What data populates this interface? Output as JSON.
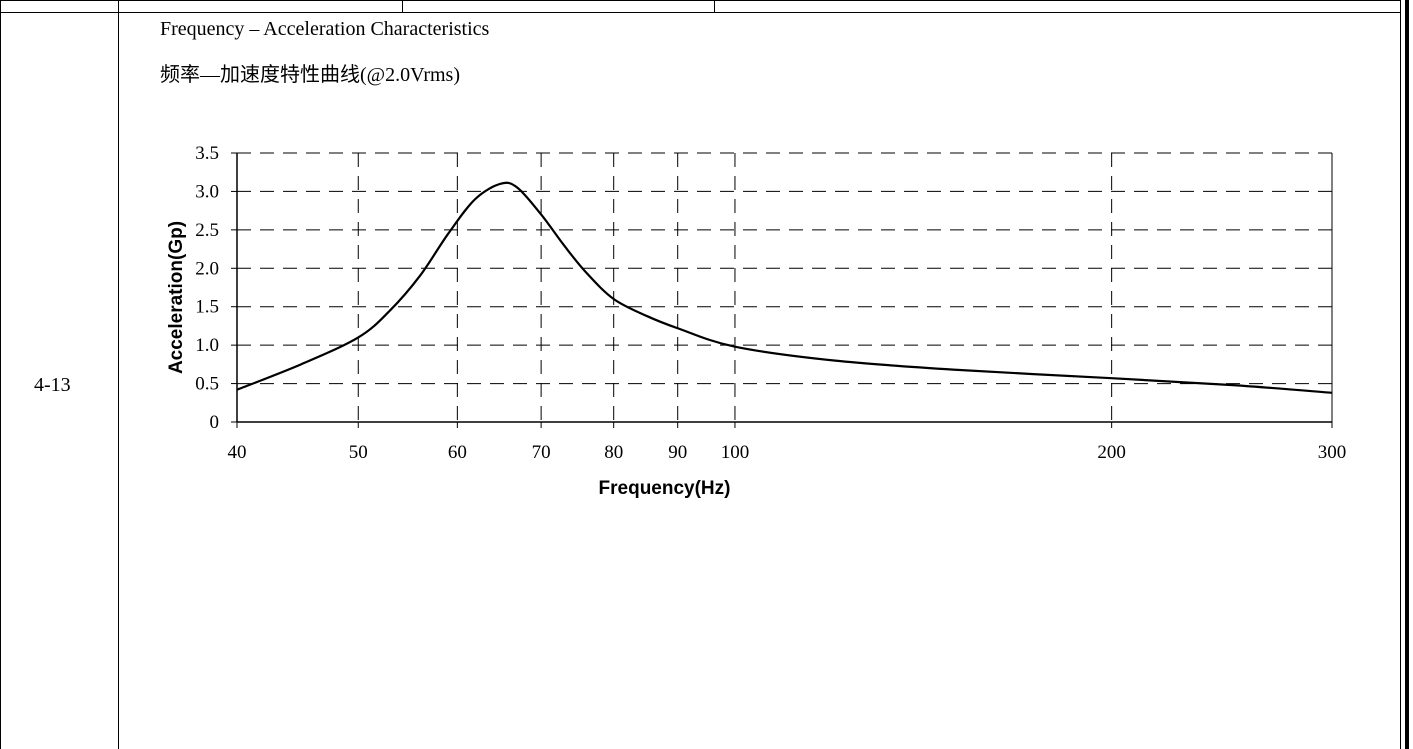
{
  "table": {
    "row_label": "4-13"
  },
  "header": {
    "title_en": "Frequency – Acceleration Characteristics",
    "title_cn": "频率—加速度特性曲线(@2.0Vrms)"
  },
  "chart_data": {
    "type": "line",
    "xlabel": "Frequency(Hz)",
    "ylabel": "Acceleration(Gp)",
    "x_scale": "log",
    "xlim": [
      40,
      300
    ],
    "ylim": [
      0,
      3.5
    ],
    "x_ticks": [
      40,
      50,
      60,
      70,
      80,
      90,
      100,
      200,
      300
    ],
    "x_tick_labels": [
      "40",
      "50",
      "60",
      "70",
      "80",
      "90",
      "100",
      "200",
      "300"
    ],
    "y_ticks": [
      0,
      0.5,
      1.0,
      1.5,
      2.0,
      2.5,
      3.0,
      3.5
    ],
    "y_tick_labels": [
      "0",
      "0.5",
      "1.0",
      "1.5",
      "2.0",
      "2.5",
      "3.0",
      "3.5"
    ],
    "grid": true,
    "grid_style": "dashed",
    "line_color": "#000000",
    "series": [
      {
        "x": [
          40,
          45,
          50,
          53,
          56,
          59,
          62,
          65,
          67,
          70,
          73,
          76,
          80,
          85,
          90,
          100,
          120,
          150,
          200,
          250,
          300
        ],
        "y": [
          0.42,
          0.75,
          1.1,
          1.45,
          1.9,
          2.45,
          2.9,
          3.1,
          3.05,
          2.7,
          2.3,
          1.95,
          1.6,
          1.38,
          1.22,
          0.98,
          0.8,
          0.68,
          0.57,
          0.48,
          0.38
        ]
      }
    ]
  }
}
